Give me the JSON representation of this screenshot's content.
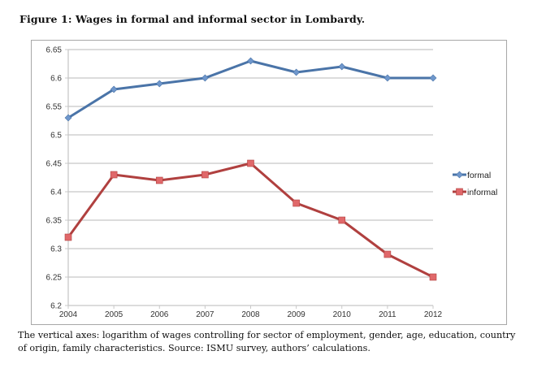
{
  "figure": {
    "title": "Figure 1: Wages in formal and informal sector in Lombardy.",
    "caption": "The vertical axes: logarithm of wages controlling for sector of employment, gender, age, education, country of origin, family characteristics. Source: ISMU survey, authors’ calculations."
  },
  "chart_data": {
    "type": "line",
    "title": "",
    "xlabel": "",
    "ylabel": "",
    "x": [
      "2004",
      "2005",
      "2006",
      "2007",
      "2008",
      "2009",
      "2010",
      "2011",
      "2012"
    ],
    "ylim": [
      6.2,
      6.65
    ],
    "yticks": [
      "6.2",
      "6.25",
      "6.3",
      "6.35",
      "6.4",
      "6.45",
      "6.5",
      "6.55",
      "6.6",
      "6.65"
    ],
    "grid": true,
    "legend_position": "right",
    "series": [
      {
        "name": "formal",
        "marker": "diamond",
        "color": "#4a74a8",
        "marker_color": "#6f97cc",
        "values": [
          6.53,
          6.58,
          6.59,
          6.6,
          6.63,
          6.61,
          6.62,
          6.6,
          6.6
        ]
      },
      {
        "name": "informal",
        "marker": "square",
        "color": "#b0403f",
        "marker_color": "#e0686a",
        "values": [
          6.32,
          6.43,
          6.42,
          6.43,
          6.45,
          6.38,
          6.35,
          6.29,
          6.25
        ]
      }
    ]
  }
}
